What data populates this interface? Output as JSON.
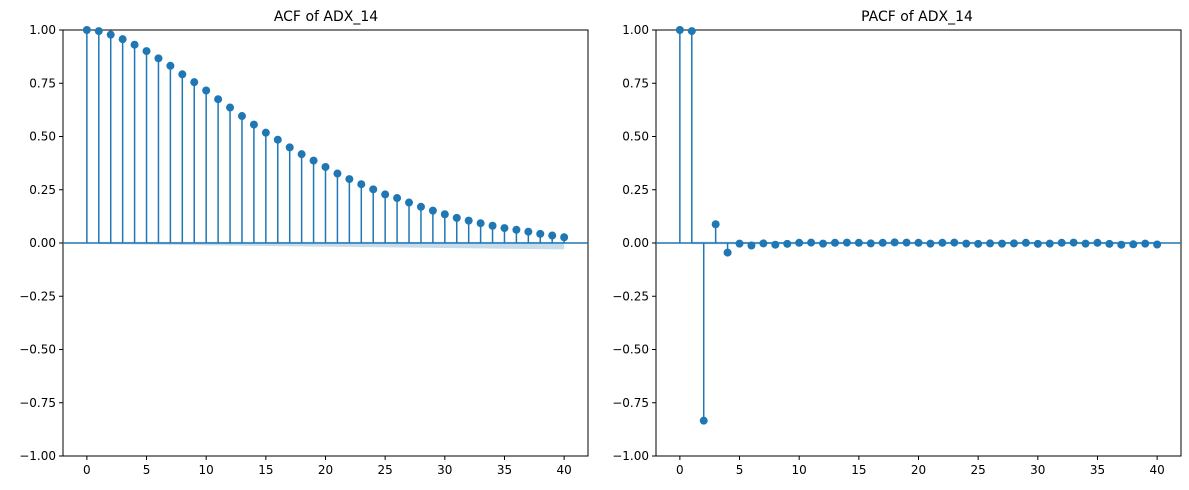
{
  "style": {
    "stem_color": "#1f77b4",
    "band_color": "#1f77b4",
    "band_opacity": 0.25
  },
  "chart_data": [
    {
      "type": "stem",
      "title": "ACF of ADX_14",
      "xlim": [
        -2,
        42
      ],
      "ylim": [
        -1.0,
        1.0
      ],
      "xticks": [
        0,
        5,
        10,
        15,
        20,
        25,
        30,
        35,
        40
      ],
      "yticks": [
        "-1.00",
        "-0.75",
        "-0.50",
        "-0.25",
        "0.00",
        "0.25",
        "0.50",
        "0.75",
        "1.00"
      ],
      "ytick_values": [
        -1.0,
        -0.75,
        -0.5,
        -0.25,
        0.0,
        0.25,
        0.5,
        0.75,
        1.0
      ],
      "lags": [
        0,
        1,
        2,
        3,
        4,
        5,
        6,
        7,
        8,
        9,
        10,
        11,
        12,
        13,
        14,
        15,
        16,
        17,
        18,
        19,
        20,
        21,
        22,
        23,
        24,
        25,
        26,
        27,
        28,
        29,
        30,
        31,
        32,
        33,
        34,
        35,
        36,
        37,
        38,
        39,
        40
      ],
      "values": [
        1.0,
        0.995,
        0.978,
        0.957,
        0.931,
        0.901,
        0.867,
        0.832,
        0.792,
        0.755,
        0.716,
        0.675,
        0.636,
        0.596,
        0.556,
        0.518,
        0.485,
        0.449,
        0.417,
        0.387,
        0.357,
        0.326,
        0.3,
        0.276,
        0.252,
        0.228,
        0.211,
        0.19,
        0.17,
        0.152,
        0.135,
        0.118,
        0.105,
        0.093,
        0.081,
        0.07,
        0.062,
        0.053,
        0.043,
        0.035,
        0.027
      ],
      "conf_band": {
        "start_lag": 1,
        "end_lag": 40,
        "upper": 0.005,
        "lower_start": -0.005,
        "lower_end": -0.03
      }
    },
    {
      "type": "stem",
      "title": "PACF of ADX_14",
      "xlim": [
        -2,
        42
      ],
      "ylim": [
        -1.0,
        1.0
      ],
      "xticks": [
        0,
        5,
        10,
        15,
        20,
        25,
        30,
        35,
        40
      ],
      "yticks": [
        "-1.00",
        "-0.75",
        "-0.50",
        "-0.25",
        "0.00",
        "0.25",
        "0.50",
        "0.75",
        "1.00"
      ],
      "ytick_values": [
        -1.0,
        -0.75,
        -0.5,
        -0.25,
        0.0,
        0.25,
        0.5,
        0.75,
        1.0
      ],
      "lags": [
        0,
        1,
        2,
        3,
        4,
        5,
        6,
        7,
        8,
        9,
        10,
        11,
        12,
        13,
        14,
        15,
        16,
        17,
        18,
        19,
        20,
        21,
        22,
        23,
        24,
        25,
        26,
        27,
        28,
        29,
        30,
        31,
        32,
        33,
        34,
        35,
        36,
        37,
        38,
        39,
        40
      ],
      "values": [
        1.0,
        0.995,
        -0.834,
        0.088,
        -0.045,
        -0.003,
        -0.012,
        -0.002,
        -0.008,
        -0.004,
        0.001,
        0.002,
        -0.003,
        0.001,
        0.002,
        0.001,
        -0.002,
        0.001,
        0.003,
        0.002,
        0.001,
        -0.003,
        0.001,
        0.002,
        -0.003,
        -0.004,
        -0.002,
        -0.003,
        -0.002,
        0.001,
        -0.004,
        -0.003,
        0.001,
        0.002,
        -0.003,
        0.001,
        -0.004,
        -0.008,
        -0.006,
        -0.003,
        -0.007
      ],
      "conf_band": {
        "start_lag": 1,
        "end_lag": 40,
        "upper": 0.006,
        "lower_start": -0.006,
        "lower_end": -0.006
      }
    }
  ]
}
